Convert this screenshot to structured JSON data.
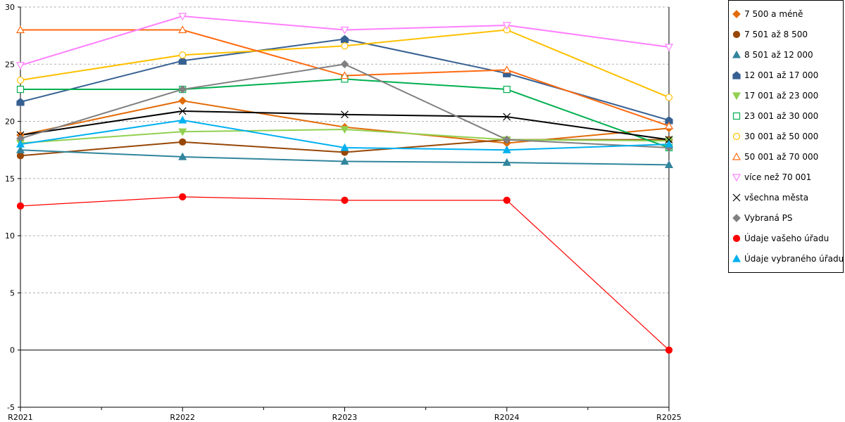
{
  "chart_data": {
    "type": "line",
    "title": "",
    "xlabel": "",
    "ylabel": "",
    "categories": [
      "R2021",
      "R2022",
      "R2023",
      "R2024",
      "R2025"
    ],
    "ylim": [
      -5,
      30
    ],
    "yticks": [
      "-5",
      "0",
      "5",
      "10",
      "15",
      "20",
      "25",
      "30"
    ],
    "grid": true,
    "legend_position": "right",
    "series": [
      {
        "name": "7 500 a méně",
        "color": "#e36c0a",
        "marker": "diamond",
        "filled": true,
        "values": [
          18.8,
          21.8,
          19.5,
          18.1,
          19.4
        ]
      },
      {
        "name": "7 501 až 8 500",
        "color": "#974706",
        "marker": "circle",
        "filled": true,
        "values": [
          17.0,
          18.2,
          17.3,
          18.4,
          18.4
        ]
      },
      {
        "name": "8 501 až 12 000",
        "color": "#31859c",
        "marker": "triangle",
        "filled": true,
        "values": [
          17.5,
          16.9,
          16.5,
          16.4,
          16.2
        ]
      },
      {
        "name": "12 001 až 17 000",
        "color": "#376092",
        "marker": "house",
        "filled": true,
        "values": [
          21.7,
          25.3,
          27.2,
          24.2,
          20.1
        ]
      },
      {
        "name": "17 001 až 23 000",
        "color": "#92d050",
        "marker": "triangle-down",
        "filled": true,
        "values": [
          18.1,
          19.1,
          19.3,
          18.4,
          18.3
        ]
      },
      {
        "name": "23 001 až 30 000",
        "color": "#00b050",
        "marker": "square",
        "filled": false,
        "values": [
          22.8,
          22.8,
          23.7,
          22.8,
          17.7
        ]
      },
      {
        "name": "30 001 až 50 000",
        "color": "#ffc000",
        "marker": "circle",
        "filled": false,
        "values": [
          23.6,
          25.8,
          26.6,
          28.0,
          22.1
        ]
      },
      {
        "name": "50 001 až 70 000",
        "color": "#ff6a10",
        "marker": "triangle",
        "filled": false,
        "values": [
          28.0,
          28.0,
          24.0,
          24.5,
          19.6
        ]
      },
      {
        "name": "více než 70 001",
        "color": "#ff80ff",
        "marker": "triangle-down",
        "filled": false,
        "values": [
          24.9,
          29.2,
          28.0,
          28.4,
          26.5
        ]
      },
      {
        "name": "všechna města",
        "color": "#000000",
        "marker": "x",
        "filled": false,
        "values": [
          18.8,
          20.9,
          20.6,
          20.4,
          18.4
        ]
      },
      {
        "name": "Vybraná PS",
        "color": "#808080",
        "marker": "diamond",
        "filled": true,
        "values": [
          18.5,
          22.8,
          25.0,
          18.4,
          17.7
        ]
      },
      {
        "name": "Údaje vašeho úřadu",
        "color": "#ff0000",
        "marker": "circle",
        "filled": true,
        "values": [
          12.6,
          13.4,
          13.1,
          13.1,
          0
        ]
      },
      {
        "name": "Údaje vybraného úřadu",
        "color": "#00b0f0",
        "marker": "triangle",
        "filled": true,
        "values": [
          18.0,
          20.1,
          17.7,
          17.5,
          18.0
        ]
      }
    ]
  }
}
